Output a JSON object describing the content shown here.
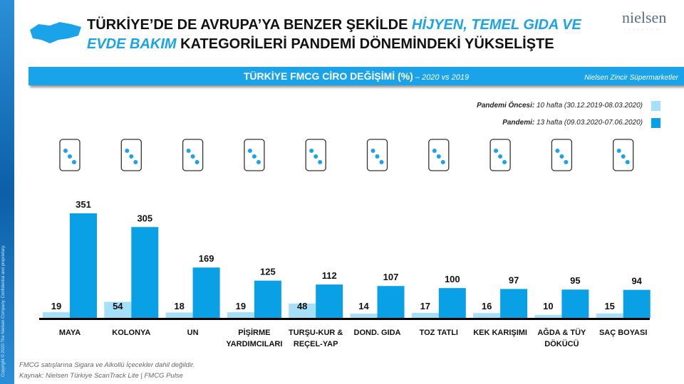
{
  "copyright": "Copyright © 2020 The Nielsen Company. Confidential and proprietary.",
  "title": {
    "part1": "TÜRKİYE’DE  DE AVRUPA’YA  BENZER  ŞEKİLDE ",
    "highlight1": "HİJYEN, TEMEL GIDA VE",
    "highlight2": "EVDE BAKIM",
    "part2": " KATEGORİLERİ  PANDEMİ  DÖNEMİNDEKİ  YÜKSELİŞTE"
  },
  "logo": "nielsen",
  "band": {
    "title": "TÜRKİYE FMCG CİRO DEĞİŞİMİ (%)",
    "subtitle": " – 2020 vs 2019",
    "source": "Nielsen Zincir Süpermarketler"
  },
  "legend": [
    {
      "bold": "Pandemi Öncesi:",
      "text": " 10 hafta (30.12.2019-08.03.2020)",
      "color": "#a6dff8"
    },
    {
      "bold": "Pandemi:",
      "text": " 13 hafta (09.03.2020-07.06.2020)",
      "color": "#0aa0e6"
    }
  ],
  "chart_data": {
    "type": "bar",
    "categories": [
      "MAYA",
      "KOLONYA",
      "UN",
      "PİŞİRME YARDIMCILARI",
      "TURŞU-KUR & REÇEL-YAP",
      "DOND. GIDA",
      "TOZ TATLI",
      "KEK KARIŞIMI",
      "AĞDA & TÜY DÖKÜCÜ",
      "SAÇ BOYASI"
    ],
    "series": [
      {
        "name": "Pandemi Öncesi",
        "values": [
          19,
          54,
          18,
          19,
          48,
          14,
          17,
          16,
          10,
          15
        ]
      },
      {
        "name": "Pandemi",
        "values": [
          351,
          305,
          169,
          125,
          112,
          107,
          100,
          97,
          95,
          94
        ]
      }
    ],
    "ylim": [
      0,
      351
    ],
    "grid": false,
    "legend": "top-right"
  },
  "icons": [
    "yeast-pack-icon",
    "cologne-bottle-icon",
    "bread-icon",
    "cooking-aid-icon",
    "jar-icon",
    "frozen-food-icon",
    "dessert-pack-icon",
    "cake-icon",
    "wax-icon",
    "hair-dye-icon"
  ],
  "footnotes": [
    "FMCG satışlarına Sigara ve Alkollü İçecekler dahil değildir.",
    "Kaynak:  Nielsen Türkiye ScanTrack Lite | FMCG Pulse"
  ]
}
